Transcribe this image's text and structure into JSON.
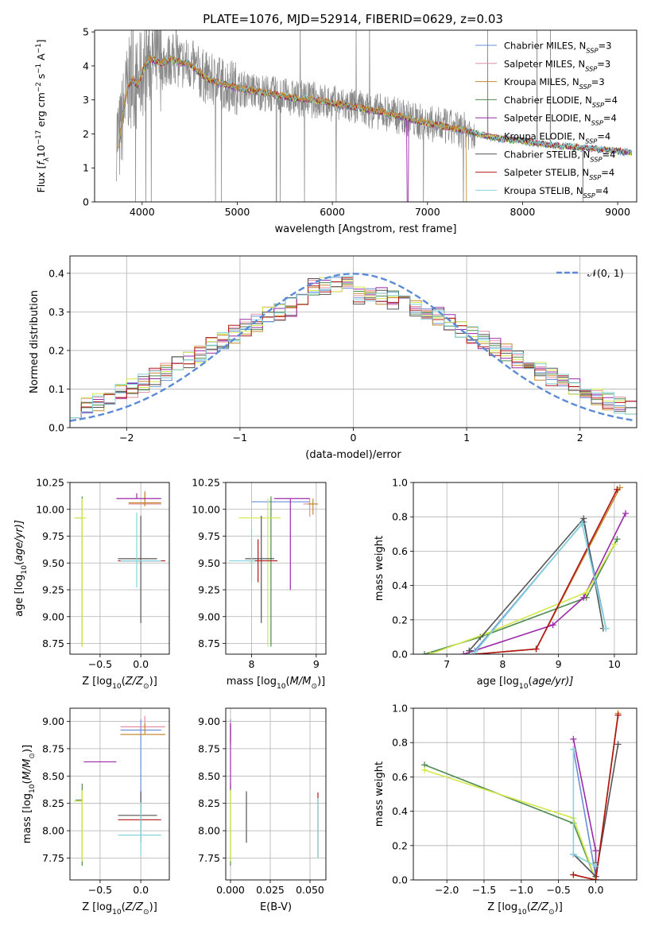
{
  "figure": {
    "palette": [
      "#6b8fd6",
      "#e58fa5",
      "#c58a2e",
      "#4f8a4f",
      "#9b2aa8",
      "#d3e84a",
      "#555555",
      "#b01818",
      "#84d4dc"
    ],
    "spectrum_color": "#888888",
    "model_color": "#e0762f",
    "panel1_title": "PLATE=1076, MJD=52914, FIBERID=0629, z=0.03"
  },
  "chart_data": [
    {
      "id": "spectrum",
      "type": "line",
      "title": "PLATE=1076, MJD=52914, FIBERID=0629, z=0.03",
      "xlabel": "wavelength [Angstrom, rest frame]",
      "ylabel_parts": [
        "Flux [",
        "f",
        "λ",
        "10",
        "−17",
        " erg cm",
        "−2",
        " s",
        "−1",
        " A",
        "−1",
        "]"
      ],
      "xlim": [
        3500,
        9200
      ],
      "ylim": [
        0,
        5.05
      ],
      "xticks": [
        4000,
        5000,
        6000,
        7000,
        8000,
        9000
      ],
      "yticks": [
        0,
        1,
        2,
        3,
        4,
        5
      ],
      "grid": false,
      "legend_position": "upper-right",
      "legend": [
        {
          "label": "Chabrier MILES, N",
          "sub": "SSP",
          "suffix": "=3",
          "color": "#6b8fd6"
        },
        {
          "label": "Salpeter MILES, N",
          "sub": "SSP",
          "suffix": "=3",
          "color": "#e58fa5"
        },
        {
          "label": "Kroupa MILES, N",
          "sub": "SSP",
          "suffix": "=3",
          "color": "#c58a2e"
        },
        {
          "label": "Chabrier ELODIE, N",
          "sub": "SSP",
          "suffix": "=4",
          "color": "#4f8a4f"
        },
        {
          "label": "Salpeter ELODIE, N",
          "sub": "SSP",
          "suffix": "=4",
          "color": "#9b2aa8"
        },
        {
          "label": "Kroupa ELODIE, N",
          "sub": "SSP",
          "suffix": "=4",
          "color": "#d3e84a"
        },
        {
          "label": "Chabrier STELIB, N",
          "sub": "SSP",
          "suffix": "=4",
          "color": "#555555"
        },
        {
          "label": "Salpeter STELIB, N",
          "sub": "SSP",
          "suffix": "=4",
          "color": "#b01818"
        },
        {
          "label": "Kroupa STELIB, N",
          "sub": "SSP",
          "suffix": "=4",
          "color": "#84d4dc"
        }
      ],
      "continuum": {
        "x": [
          3730,
          3760,
          3800,
          3850,
          3900,
          3950,
          4000,
          4050,
          4100,
          4200,
          4300,
          4400,
          4500,
          4600,
          4700,
          4800,
          4900,
          5000,
          5200,
          5400,
          5600,
          5800,
          6000,
          6200,
          6400,
          6600,
          6800,
          7000,
          7200,
          7400,
          7600,
          7800,
          8000,
          8200,
          8400,
          8600,
          8800,
          9000,
          9150
        ],
        "y": [
          2.0,
          1.8,
          2.6,
          3.4,
          3.6,
          3.4,
          3.8,
          4.1,
          4.2,
          4.05,
          4.2,
          4.1,
          4.05,
          3.8,
          3.6,
          3.5,
          3.45,
          3.35,
          3.25,
          3.15,
          3.05,
          3.0,
          2.9,
          2.8,
          2.7,
          2.6,
          2.45,
          2.3,
          2.2,
          2.1,
          1.95,
          1.85,
          1.8,
          1.7,
          1.65,
          1.6,
          1.55,
          1.5,
          1.45
        ]
      },
      "model_drops": [
        3740,
        6790,
        7420
      ]
    },
    {
      "id": "residuals",
      "type": "histogram",
      "xlabel": "(data-model)/error",
      "ylabel": "Normed distribution",
      "xlim": [
        -2.5,
        2.5
      ],
      "ylim": [
        0,
        0.445
      ],
      "xticks": [
        -2,
        -1,
        0,
        1,
        2
      ],
      "yticks": [
        0.0,
        0.1,
        0.2,
        0.3,
        0.4
      ],
      "grid": true,
      "legend_position": "upper-right",
      "legend": [
        {
          "label": "𝒩(0, 1)",
          "color": "#5b8bd6",
          "dash": true
        }
      ],
      "normal_curve": {
        "mean": 0,
        "sigma": 1,
        "peak": 0.399
      },
      "bin_width": 0.1
    },
    {
      "id": "age-vs-Z",
      "type": "errorbar",
      "xlabel_parts": [
        "Z [log",
        "10",
        "(Z/Z",
        "⊙",
        ")]"
      ],
      "ylabel_parts": [
        "age  [log",
        "10",
        "(age/yr)]"
      ],
      "xlim": [
        -0.87,
        0.35
      ],
      "ylim": [
        8.65,
        10.25
      ],
      "xticks": [
        -0.5,
        0.0
      ],
      "yticks": [
        8.75,
        9.0,
        9.25,
        9.5,
        9.75,
        10.0,
        10.25
      ],
      "grid": true,
      "points": [
        {
          "color": "#6b8fd6",
          "x": 0.0,
          "xerr": [
            0.25,
            0.25
          ],
          "y": 9.52,
          "yerr": [
            0.0,
            0.0
          ]
        },
        {
          "color": "#e58fa5",
          "x": 0.05,
          "xerr": [
            0.2,
            0.2
          ],
          "y": 10.05,
          "yerr": [
            0.02,
            0.12
          ]
        },
        {
          "color": "#c58a2e",
          "x": 0.05,
          "xerr": [
            0.2,
            0.2
          ],
          "y": 10.06,
          "yerr": [
            0.03,
            0.1
          ]
        },
        {
          "color": "#4f8a4f",
          "x": -0.72,
          "xerr": [
            0.08,
            0.0
          ],
          "y": 9.92,
          "yerr": [
            1.2,
            0.2
          ]
        },
        {
          "color": "#9b2aa8",
          "x": -0.05,
          "xerr": [
            0.25,
            0.3
          ],
          "y": 10.1,
          "yerr": [
            0.0,
            0.05
          ]
        },
        {
          "color": "#d3e84a",
          "x": -0.72,
          "xerr": [
            0.1,
            0.05
          ],
          "y": 9.92,
          "yerr": [
            1.2,
            0.18
          ]
        },
        {
          "color": "#555555",
          "x": 0.0,
          "xerr": [
            0.28,
            0.2
          ],
          "y": 9.54,
          "yerr": [
            0.6,
            0.4
          ]
        },
        {
          "color": "#b01818",
          "x": 0.0,
          "xerr": [
            0.28,
            0.3
          ],
          "y": 9.52,
          "yerr": [
            0.0,
            0.0
          ]
        },
        {
          "color": "#84d4dc",
          "x": -0.05,
          "xerr": [
            0.2,
            0.3
          ],
          "y": 9.52,
          "yerr": [
            0.25,
            0.45
          ]
        }
      ]
    },
    {
      "id": "age-vs-mass",
      "type": "errorbar",
      "xlabel_parts": [
        "mass [log",
        "10",
        "(M/M",
        "⊙",
        ")]"
      ],
      "xlim": [
        7.6,
        9.15
      ],
      "ylim": [
        8.65,
        10.25
      ],
      "xticks": [
        8,
        9
      ],
      "yticks": [
        8.75,
        9.0,
        9.25,
        9.5,
        9.75,
        10.0,
        10.25
      ],
      "grid": true,
      "points": [
        {
          "color": "#6b8fd6",
          "x": 8.5,
          "xerr": [
            0.5,
            0.4
          ],
          "y": 10.07,
          "yerr": [
            0.0,
            0.0
          ]
        },
        {
          "color": "#e58fa5",
          "x": 8.9,
          "xerr": [
            0.1,
            0.05
          ],
          "y": 10.05,
          "yerr": [
            0.12,
            0.05
          ]
        },
        {
          "color": "#c58a2e",
          "x": 8.95,
          "xerr": [
            0.08,
            0.08
          ],
          "y": 10.05,
          "yerr": [
            0.1,
            0.05
          ]
        },
        {
          "color": "#4f8a4f",
          "x": 8.3,
          "xerr": [
            0.0,
            0.0
          ],
          "y": 9.92,
          "yerr": [
            1.2,
            0.2
          ]
        },
        {
          "color": "#9b2aa8",
          "x": 8.6,
          "xerr": [
            0.25,
            0.3
          ],
          "y": 10.1,
          "yerr": [
            0.85,
            0.0
          ]
        },
        {
          "color": "#d3e84a",
          "x": 8.25,
          "xerr": [
            0.45,
            0.2
          ],
          "y": 9.92,
          "yerr": [
            1.2,
            0.18
          ]
        },
        {
          "color": "#555555",
          "x": 8.15,
          "xerr": [
            0.25,
            0.2
          ],
          "y": 9.54,
          "yerr": [
            0.6,
            0.4
          ]
        },
        {
          "color": "#b01818",
          "x": 8.1,
          "xerr": [
            0.15,
            0.3
          ],
          "y": 9.52,
          "yerr": [
            0.2,
            0.2
          ]
        },
        {
          "color": "#84d4dc",
          "x": 8.0,
          "xerr": [
            0.35,
            0.05
          ],
          "y": 9.52,
          "yerr": [
            0.2,
            0.3
          ]
        }
      ]
    },
    {
      "id": "mass-weight-vs-age",
      "type": "line",
      "xlabel_parts": [
        "age  [log",
        "10",
        "(age/yr)]"
      ],
      "ylabel": "mass weight",
      "xlim": [
        6.4,
        10.4
      ],
      "ylim": [
        0,
        1.0
      ],
      "xticks": [
        7,
        8,
        9,
        10
      ],
      "yticks": [
        0.0,
        0.2,
        0.4,
        0.6,
        0.8,
        1.0
      ],
      "grid": true,
      "series": [
        {
          "color": "#6b8fd6",
          "x": [
            7.5,
            9.45,
            9.85
          ],
          "y": [
            0.02,
            0.77,
            0.15
          ]
        },
        {
          "color": "#e58fa5",
          "x": [
            7.5,
            8.6,
            10.05
          ],
          "y": [
            0.0,
            0.03,
            0.96
          ]
        },
        {
          "color": "#c58a2e",
          "x": [
            7.5,
            8.6,
            10.1
          ],
          "y": [
            0.0,
            0.03,
            0.97
          ]
        },
        {
          "color": "#4f8a4f",
          "x": [
            6.6,
            7.6,
            9.5,
            10.05
          ],
          "y": [
            0.0,
            0.1,
            0.33,
            0.67
          ]
        },
        {
          "color": "#9b2aa8",
          "x": [
            7.3,
            8.9,
            9.45,
            10.2
          ],
          "y": [
            0.0,
            0.17,
            0.33,
            0.82
          ]
        },
        {
          "color": "#d3e84a",
          "x": [
            6.7,
            7.7,
            9.5,
            10.0
          ],
          "y": [
            0.0,
            0.12,
            0.36,
            0.64
          ]
        },
        {
          "color": "#555555",
          "x": [
            7.4,
            9.45,
            9.8
          ],
          "y": [
            0.02,
            0.79,
            0.15
          ]
        },
        {
          "color": "#b01818",
          "x": [
            7.5,
            8.6,
            10.05
          ],
          "y": [
            0.0,
            0.03,
            0.96
          ]
        },
        {
          "color": "#84d4dc",
          "x": [
            7.5,
            9.42,
            9.85
          ],
          "y": [
            0.01,
            0.76,
            0.15
          ]
        }
      ]
    },
    {
      "id": "mass-vs-Z",
      "type": "errorbar",
      "xlabel_parts": [
        "Z [log",
        "10",
        "(Z/Z",
        "⊙",
        ")]"
      ],
      "ylabel_parts": [
        "mass [log",
        "10",
        "(M/M",
        "⊙",
        ")]"
      ],
      "xlim": [
        -0.87,
        0.35
      ],
      "ylim": [
        7.55,
        9.12
      ],
      "xticks": [
        -0.5,
        0.0
      ],
      "yticks": [
        7.75,
        8.0,
        8.25,
        8.5,
        8.75,
        9.0
      ],
      "grid": true,
      "points": [
        {
          "color": "#6b8fd6",
          "x": 0.0,
          "xerr": [
            0.25,
            0.25
          ],
          "y": 8.92,
          "yerr": [
            0.9,
            0.1
          ]
        },
        {
          "color": "#e58fa5",
          "x": 0.05,
          "xerr": [
            0.3,
            0.25
          ],
          "y": 8.95,
          "yerr": [
            0.0,
            0.1
          ]
        },
        {
          "color": "#c58a2e",
          "x": 0.05,
          "xerr": [
            0.3,
            0.25
          ],
          "y": 8.88,
          "yerr": [
            0.0,
            0.1
          ]
        },
        {
          "color": "#4f8a4f",
          "x": -0.72,
          "xerr": [
            0.08,
            0.0
          ],
          "y": 8.28,
          "yerr": [
            0.6,
            0.15
          ]
        },
        {
          "color": "#9b2aa8",
          "x": -0.3,
          "xerr": [
            0.4,
            0.0
          ],
          "y": 8.63,
          "yerr": [
            0.0,
            0.0
          ]
        },
        {
          "color": "#d3e84a",
          "x": -0.72,
          "xerr": [
            0.1,
            0.0
          ],
          "y": 8.27,
          "yerr": [
            0.55,
            0.1
          ]
        },
        {
          "color": "#555555",
          "x": 0.0,
          "xerr": [
            0.28,
            0.2
          ],
          "y": 8.14,
          "yerr": [
            0.25,
            0.22
          ]
        },
        {
          "color": "#b01818",
          "x": 0.0,
          "xerr": [
            0.28,
            0.25
          ],
          "y": 8.1,
          "yerr": [
            0.0,
            0.0
          ]
        },
        {
          "color": "#84d4dc",
          "x": 0.0,
          "xerr": [
            0.28,
            0.25
          ],
          "y": 7.96,
          "yerr": [
            0.2,
            0.3
          ]
        }
      ]
    },
    {
      "id": "mass-vs-EBV",
      "type": "errorbar",
      "xlabel": "E(B-V)",
      "xlim": [
        -0.003,
        0.06
      ],
      "ylim": [
        7.55,
        9.12
      ],
      "xticks": [
        0.0,
        0.025,
        0.05
      ],
      "xtick_labels": [
        "0.000",
        "0.025",
        "0.050"
      ],
      "yticks": [
        7.75,
        8.0,
        8.25,
        8.5,
        8.75,
        9.0
      ],
      "grid": true,
      "points": [
        {
          "color": "#6b8fd6",
          "x": 0.0,
          "xerr": [
            0,
            0
          ],
          "y": 8.92,
          "yerr": [
            0.1,
            0.1
          ]
        },
        {
          "color": "#e58fa5",
          "x": 0.0,
          "xerr": [
            0,
            0
          ],
          "y": 8.9,
          "yerr": [
            0.1,
            0.1
          ]
        },
        {
          "color": "#c58a2e",
          "x": 0.0,
          "xerr": [
            0,
            0
          ],
          "y": 8.88,
          "yerr": [
            0.1,
            0.1
          ]
        },
        {
          "color": "#4f8a4f",
          "x": 0.0,
          "xerr": [
            0,
            0
          ],
          "y": 8.28,
          "yerr": [
            0.6,
            0.15
          ]
        },
        {
          "color": "#9b2aa8",
          "x": 0.0,
          "xerr": [
            0,
            0
          ],
          "y": 8.63,
          "yerr": [
            0.25,
            0.35
          ]
        },
        {
          "color": "#d3e84a",
          "x": 0.0,
          "xerr": [
            0,
            0
          ],
          "y": 8.27,
          "yerr": [
            0.55,
            0.1
          ]
        },
        {
          "color": "#555555",
          "x": 0.01,
          "xerr": [
            0,
            0
          ],
          "y": 8.14,
          "yerr": [
            0.25,
            0.22
          ]
        },
        {
          "color": "#b01818",
          "x": 0.055,
          "xerr": [
            0,
            0
          ],
          "y": 8.1,
          "yerr": [
            0.35,
            0.25
          ]
        },
        {
          "color": "#84d4dc",
          "x": 0.055,
          "xerr": [
            0,
            0
          ],
          "y": 8.0,
          "yerr": [
            0.25,
            0.3
          ]
        }
      ]
    },
    {
      "id": "mass-weight-vs-Z",
      "type": "line",
      "xlabel_parts": [
        "Z [log",
        "10",
        "(Z/Z",
        "⊙",
        ")]"
      ],
      "ylabel": "mass weight",
      "xlim": [
        -2.45,
        0.55
      ],
      "ylim": [
        0,
        1.0
      ],
      "xticks": [
        -2.0,
        -1.5,
        -1.0,
        -0.5,
        0.0
      ],
      "yticks": [
        0.0,
        0.2,
        0.4,
        0.6,
        0.8,
        1.0
      ],
      "grid": true,
      "series": [
        {
          "color": "#6b8fd6",
          "x": [
            -0.3,
            0.0,
            -0.3
          ],
          "y": [
            0.15,
            0.02,
            0.76
          ]
        },
        {
          "color": "#e58fa5",
          "x": [
            -0.3,
            0.0,
            0.3
          ],
          "y": [
            0.03,
            0.0,
            0.96
          ]
        },
        {
          "color": "#c58a2e",
          "x": [
            -0.3,
            0.0,
            0.3
          ],
          "y": [
            0.03,
            0.0,
            0.97
          ]
        },
        {
          "color": "#4f8a4f",
          "x": [
            -2.3,
            -0.3,
            0.0,
            0.0
          ],
          "y": [
            0.67,
            0.33,
            0.0,
            0.1
          ]
        },
        {
          "color": "#9b2aa8",
          "x": [
            -0.3,
            0.0,
            0.0
          ],
          "y": [
            0.82,
            0.17,
            0.0
          ]
        },
        {
          "color": "#d3e84a",
          "x": [
            -2.3,
            -0.3,
            0.0
          ],
          "y": [
            0.64,
            0.36,
            0.0
          ]
        },
        {
          "color": "#555555",
          "x": [
            -0.3,
            0.0,
            0.3
          ],
          "y": [
            0.15,
            0.02,
            0.79
          ]
        },
        {
          "color": "#b01818",
          "x": [
            -0.3,
            0.0,
            0.3
          ],
          "y": [
            0.03,
            0.0,
            0.96
          ]
        },
        {
          "color": "#84d4dc",
          "x": [
            -0.3,
            -0.3,
            0.0
          ],
          "y": [
            0.76,
            0.15,
            0.08
          ]
        }
      ]
    }
  ]
}
